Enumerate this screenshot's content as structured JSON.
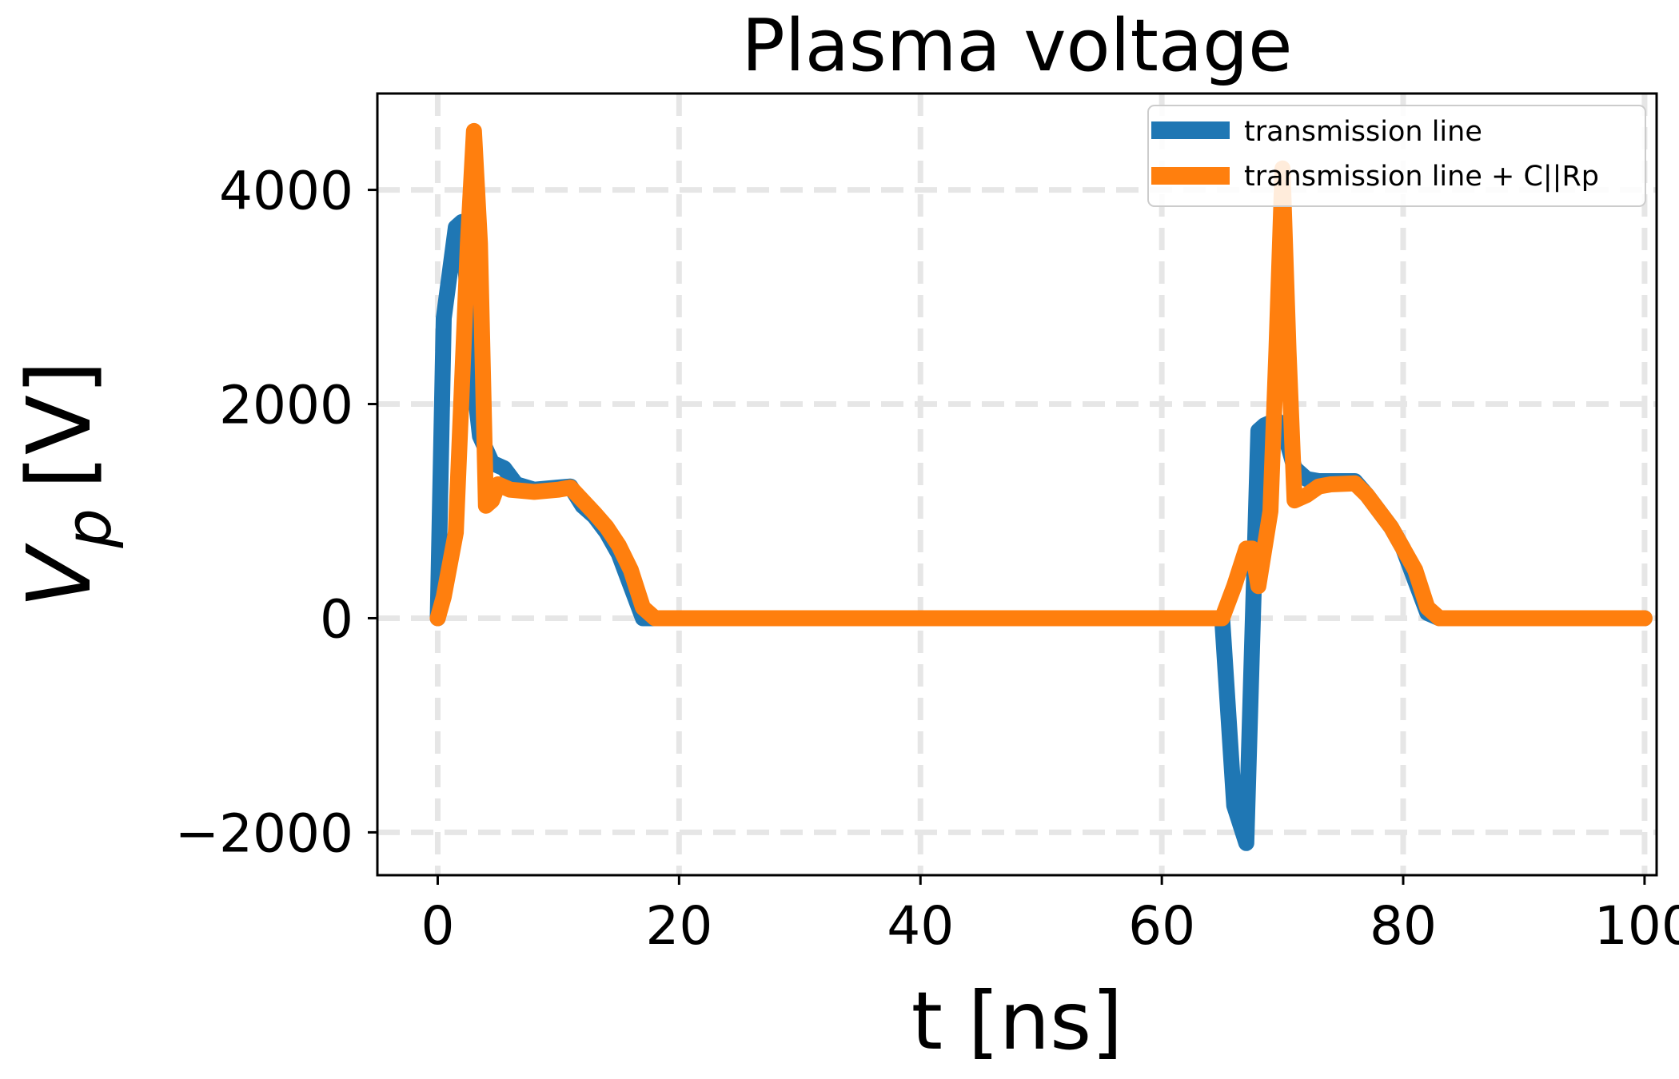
{
  "chart_data": {
    "type": "line",
    "title": "Plasma voltage",
    "xlabel": "t [ns]",
    "ylabel": {
      "symbol": "V",
      "subscript": "p",
      "unit": "[V]"
    },
    "xlim": [
      -5,
      101
    ],
    "ylim": [
      -2400,
      4900
    ],
    "xticks": [
      0,
      20,
      40,
      60,
      80,
      100
    ],
    "yticks": [
      -2000,
      0,
      2000,
      4000
    ],
    "xtick_labels": [
      "0",
      "20",
      "40",
      "60",
      "80",
      "100"
    ],
    "ytick_labels": [
      "−2000",
      "0",
      "2000",
      "4000"
    ],
    "grid": true,
    "legend_position": "top-right",
    "series": [
      {
        "name": "transmission line",
        "color": "#1f77b4",
        "x": [
          0,
          0.5,
          1.5,
          2,
          2.5,
          3,
          3.5,
          4.5,
          5.5,
          6.5,
          8,
          10,
          11,
          12,
          13,
          14,
          15,
          16,
          17,
          18,
          20,
          30,
          40,
          50,
          60,
          64.5,
          65,
          66,
          67,
          68,
          68.5,
          69.5,
          70,
          71,
          72,
          73,
          74,
          76,
          77,
          78,
          79,
          80,
          81,
          82,
          83,
          90,
          100
        ],
        "y": [
          0,
          2800,
          3650,
          3700,
          3000,
          2200,
          1700,
          1450,
          1400,
          1250,
          1200,
          1220,
          1230,
          1050,
          950,
          800,
          600,
          300,
          0,
          0,
          0,
          0,
          0,
          0,
          0,
          0,
          0,
          -1750,
          -2100,
          1750,
          1800,
          1850,
          1800,
          1400,
          1300,
          1280,
          1280,
          1280,
          1150,
          1000,
          850,
          650,
          350,
          50,
          0,
          0,
          0
        ]
      },
      {
        "name": "transmission line + C||Rp",
        "color": "#ff7f0e",
        "x": [
          0,
          0.5,
          1.5,
          2.5,
          3,
          3.5,
          4,
          4.5,
          5,
          6,
          8,
          10,
          11,
          12,
          13,
          14,
          15,
          16,
          17,
          18,
          20,
          30,
          40,
          50,
          60,
          64.5,
          65,
          66,
          67,
          67.5,
          68,
          69,
          69.5,
          70,
          70.5,
          71,
          72,
          73,
          74,
          76,
          77,
          78,
          79,
          80,
          81,
          82,
          83,
          90,
          100
        ],
        "y": [
          0,
          200,
          800,
          3500,
          4550,
          3500,
          1050,
          1100,
          1250,
          1200,
          1180,
          1200,
          1220,
          1100,
          980,
          850,
          680,
          450,
          100,
          0,
          0,
          0,
          0,
          0,
          0,
          0,
          0,
          300,
          650,
          650,
          300,
          1000,
          2500,
          4200,
          2500,
          1100,
          1150,
          1230,
          1250,
          1260,
          1150,
          1000,
          850,
          650,
          450,
          100,
          0,
          0,
          0
        ]
      }
    ]
  }
}
